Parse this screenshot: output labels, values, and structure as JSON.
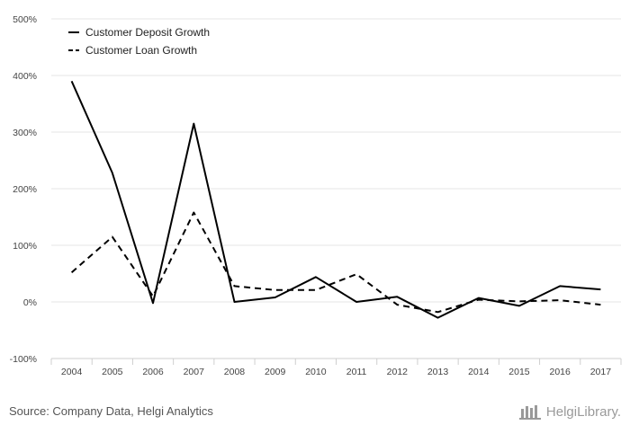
{
  "chart_data": {
    "type": "line",
    "categories": [
      "2004",
      "2005",
      "2006",
      "2007",
      "2008",
      "2009",
      "2010",
      "2011",
      "2012",
      "2013",
      "2014",
      "2015",
      "2016",
      "2017"
    ],
    "series": [
      {
        "name": "Customer Deposit Growth",
        "style": "solid",
        "values": [
          390,
          228,
          -2,
          315,
          0,
          8,
          44,
          0,
          9,
          -28,
          7,
          -7,
          28,
          22
        ]
      },
      {
        "name": "Customer Loan Growth",
        "style": "dashed",
        "values": [
          52,
          115,
          10,
          158,
          28,
          21,
          21,
          49,
          -5,
          -18,
          4,
          1,
          3,
          -5
        ]
      }
    ],
    "ylim": [
      -100,
      500
    ],
    "yticks": [
      500,
      400,
      300,
      200,
      100,
      0,
      -100
    ],
    "ytick_labels": [
      "500%",
      "400%",
      "300%",
      "200%",
      "100%",
      "0%",
      "-100%"
    ],
    "grid": true,
    "legend_position": "top-left",
    "line_color": "#000000",
    "grid_color": "#e6e6e6"
  },
  "footer": {
    "source": "Source: Company Data, Helgi Analytics",
    "brand": "HelgiLibrary."
  }
}
